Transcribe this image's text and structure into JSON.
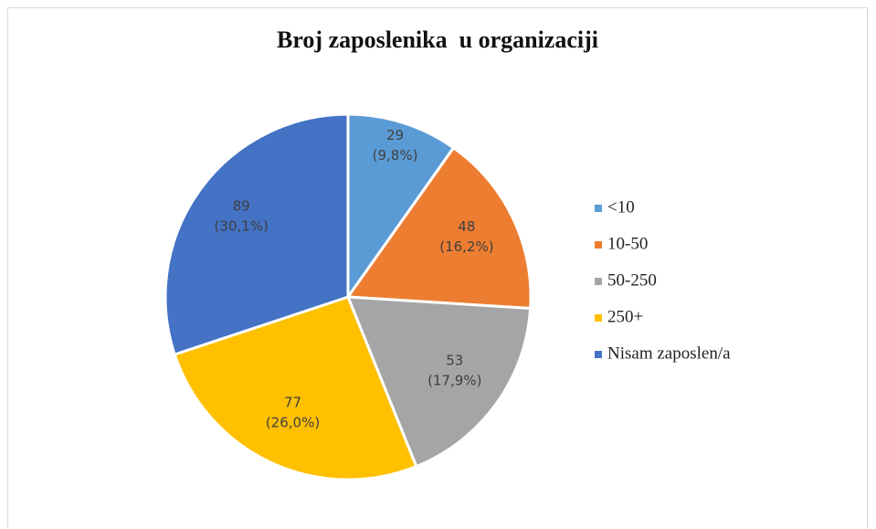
{
  "chart_data": {
    "type": "pie",
    "title": "Broj zaposlenika  u organizaciji",
    "categories": [
      "<10",
      "10-50",
      "50-250",
      "250+",
      "Nisam zaposlen/a"
    ],
    "values": [
      29,
      48,
      53,
      77,
      89
    ],
    "percents": [
      9.8,
      16.2,
      17.9,
      26.0,
      30.1
    ],
    "percent_labels": [
      "(9,8%)",
      "(16,2%)",
      "(17,9%)",
      "(26,0%)",
      "(30,1%)"
    ],
    "colors": [
      "#5b9bd5",
      "#ed7d31",
      "#a5a5a5",
      "#ffc000",
      "#4472c4"
    ],
    "legend": "right"
  }
}
